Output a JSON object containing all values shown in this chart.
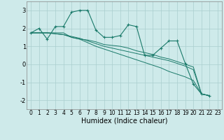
{
  "xlabel": "Humidex (Indice chaleur)",
  "x_ticks": [
    0,
    1,
    2,
    3,
    4,
    5,
    6,
    7,
    8,
    9,
    10,
    11,
    12,
    13,
    14,
    15,
    16,
    17,
    18,
    19,
    20,
    21,
    22,
    23
  ],
  "ylim": [
    -2.5,
    3.5
  ],
  "xlim": [
    -0.5,
    23.5
  ],
  "yticks": [
    -2,
    -1,
    0,
    1,
    2,
    3
  ],
  "bg_color": "#ceeaea",
  "grid_color": "#aacece",
  "line_color": "#1a7a6a",
  "series": [
    [
      1.75,
      2.0,
      1.4,
      2.1,
      2.1,
      2.9,
      3.0,
      3.0,
      1.9,
      1.5,
      1.5,
      1.6,
      2.2,
      2.1,
      0.5,
      0.5,
      0.9,
      1.3,
      1.3,
      0.05,
      -1.1,
      -1.65,
      -1.75
    ],
    [
      1.75,
      1.75,
      1.75,
      1.75,
      1.75,
      1.5,
      1.4,
      1.35,
      1.25,
      1.1,
      1.05,
      1.0,
      0.9,
      0.75,
      0.65,
      0.55,
      0.4,
      0.3,
      0.15,
      0.0,
      -0.15,
      -1.65,
      -1.75
    ],
    [
      1.75,
      1.75,
      1.75,
      1.7,
      1.65,
      1.5,
      1.4,
      1.2,
      1.0,
      0.85,
      0.7,
      0.55,
      0.4,
      0.25,
      0.1,
      -0.05,
      -0.2,
      -0.4,
      -0.55,
      -0.7,
      -0.9,
      -1.65,
      -1.75
    ],
    [
      1.75,
      1.75,
      1.75,
      1.7,
      1.65,
      1.55,
      1.45,
      1.3,
      1.15,
      1.0,
      0.9,
      0.8,
      0.7,
      0.6,
      0.5,
      0.4,
      0.3,
      0.2,
      0.05,
      -0.1,
      -0.3,
      -1.65,
      -1.75
    ]
  ],
  "series_x": [
    [
      0,
      1,
      2,
      3,
      4,
      5,
      6,
      7,
      8,
      9,
      10,
      11,
      12,
      13,
      14,
      15,
      16,
      17,
      18,
      19,
      20,
      21,
      22
    ],
    [
      0,
      1,
      2,
      3,
      4,
      5,
      6,
      7,
      8,
      9,
      10,
      11,
      12,
      13,
      14,
      15,
      16,
      17,
      18,
      19,
      20,
      21,
      22
    ],
    [
      0,
      1,
      2,
      3,
      4,
      5,
      6,
      7,
      8,
      9,
      10,
      11,
      12,
      13,
      14,
      15,
      16,
      17,
      18,
      19,
      20,
      21,
      22
    ],
    [
      0,
      1,
      2,
      3,
      4,
      5,
      6,
      7,
      8,
      9,
      10,
      11,
      12,
      13,
      14,
      15,
      16,
      17,
      18,
      19,
      20,
      21,
      22
    ]
  ],
  "tick_fontsize": 5.5,
  "xlabel_fontsize": 7
}
